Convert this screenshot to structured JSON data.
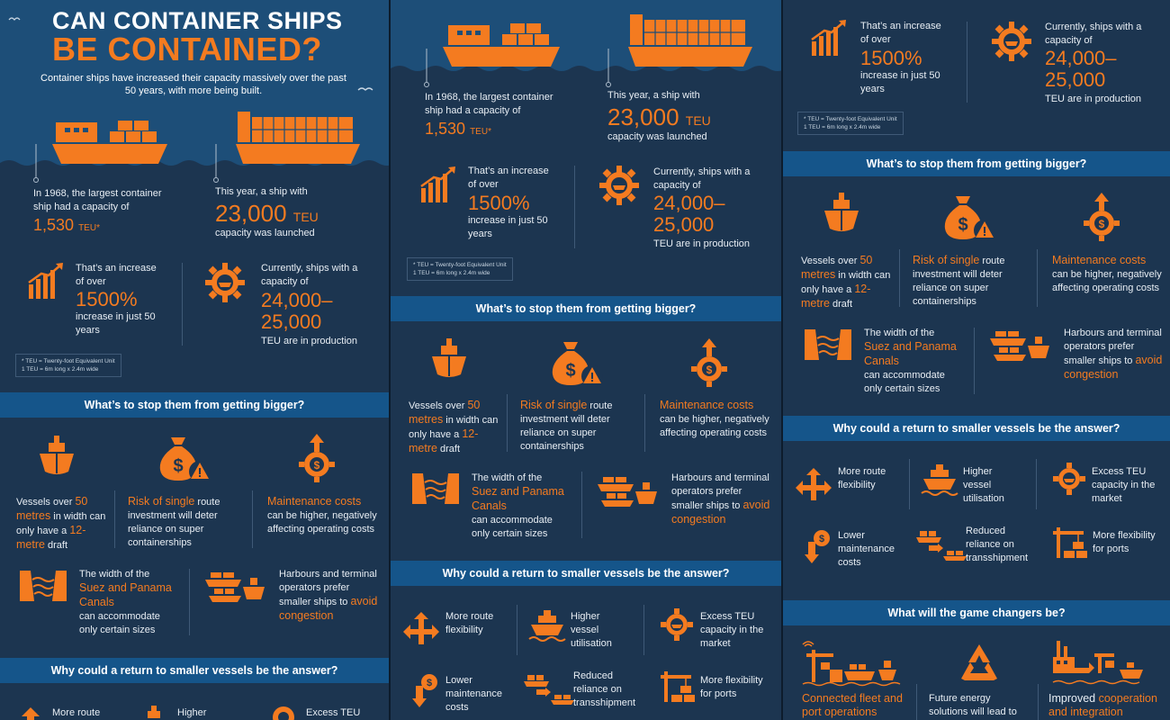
{
  "colors": {
    "background": "#1c3550",
    "accent": "#f47b20",
    "band": "#15558a",
    "header": "#1d4e78",
    "text": "#e8eef4"
  },
  "header": {
    "title_line1": "CAN CONTAINER SHIPS",
    "title_line2": "BE CONTAINED?",
    "subtitle": "Container ships have increased their capacity massively over the past 50 years, with more being built."
  },
  "stats": {
    "s1968_text": "In 1968, the largest container ship had a capacity of",
    "s1968_value": "1,530",
    "s1968_unit": "TEU*",
    "s2018_text": "This year, a ship with",
    "s2018_value": "23,000",
    "s2018_unit": "TEU",
    "s2018_tail": "capacity was launched",
    "increase_pre": "That’s an increase of over",
    "increase_value": "1500%",
    "increase_post": "increase in just 50 years",
    "prod_pre": "Currently, ships with a capacity of",
    "prod_value": "24,000–25,000",
    "prod_post": "TEU are in production"
  },
  "footnote": {
    "line1": "* TEU = Twenty-foot Equivalent Unit",
    "line2": "1 TEU = 6m long x 2.4m wide"
  },
  "sections": {
    "stop": "What’s to stop them from getting bigger?",
    "return": "Why could a return to smaller vessels be the answer?",
    "game": "What will the game changers be?"
  },
  "stop_items": {
    "vessels_a": "Vessels over",
    "vessels_b": "50 metres",
    "vessels_c": "in width can only have a",
    "vessels_d": "12-metre",
    "vessels_e": "draft",
    "risk_a": "Risk of single",
    "risk_b": "route investment will deter reliance on super containerships",
    "maint_a": "Maintenance costs",
    "maint_b": "can be higher, negatively affecting operating costs",
    "canal_a": "The width of the",
    "canal_b": "Suez and Panama Canals",
    "canal_c": "can accommodate only certain sizes",
    "harbour_a": "Harbours and terminal operators prefer smaller ships to",
    "harbour_b": "avoid congestion"
  },
  "return_items": [
    "More route flexibility",
    "Higher vessel utilisation",
    "Excess TEU capacity in the market",
    "Lower maintenance costs",
    "Reduced reliance on transshipment",
    "More flexibility for ports"
  ],
  "game_items": {
    "fleet": "Connected fleet and port operations",
    "energy": "Future energy solutions will lead to",
    "coop_a": "Improved",
    "coop_b": "cooperation and integration"
  }
}
